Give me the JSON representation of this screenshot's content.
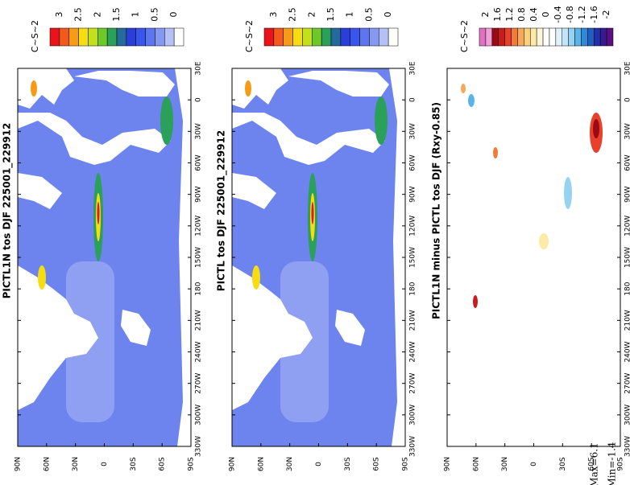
{
  "panels": [
    {
      "title": "PICTL1N tos DJF 225001_229912",
      "colorbar": {
        "unit": "C~S~2",
        "labels": [
          "3",
          "2.5",
          "2",
          "1.5",
          "1",
          "0.5",
          "0"
        ],
        "colors": [
          "#e8141c",
          "#f2591a",
          "#f79a16",
          "#f5dd12",
          "#c4e01a",
          "#6fc82a",
          "#2aa05a",
          "#246a9a",
          "#2c3ed8",
          "#3a55ec",
          "#5d76f0",
          "#8598f2",
          "#b4c0f6",
          "#ffffff"
        ]
      },
      "lat_labels": [
        "90N",
        "60N",
        "30N",
        "0",
        "30S",
        "60S",
        "90S"
      ],
      "lon_labels": [
        "30E",
        "0",
        "30W",
        "60W",
        "90W",
        "120W",
        "150W",
        "180",
        "210W",
        "240W",
        "270W",
        "300W",
        "330W"
      ]
    },
    {
      "title": "PICTL tos DJF 225001_229912",
      "colorbar": {
        "unit": "C~S~2",
        "labels": [
          "3",
          "2.5",
          "2",
          "1.5",
          "1",
          "0.5",
          "0"
        ],
        "colors": [
          "#e8141c",
          "#f2591a",
          "#f79a16",
          "#f5dd12",
          "#c4e01a",
          "#6fc82a",
          "#2aa05a",
          "#246a9a",
          "#2c3ed8",
          "#3a55ec",
          "#5d76f0",
          "#8598f2",
          "#b4c0f6",
          "#ffffff"
        ]
      },
      "lat_labels": [
        "90N",
        "60N",
        "30N",
        "0",
        "30S",
        "60S",
        "90S"
      ],
      "lon_labels": [
        "30E",
        "0",
        "30W",
        "60W",
        "90W",
        "120W",
        "150W",
        "180",
        "210W",
        "240W",
        "270W",
        "300W",
        "330W"
      ]
    },
    {
      "title": "PICTL1N minus PICTL tos DJF (Rxy-0.85)",
      "colorbar": {
        "unit": "C~S~2",
        "labels": [
          "2",
          "1.6",
          "1.2",
          "0.8",
          "0.4",
          "0",
          "-0.4",
          "-0.8",
          "-1.2",
          "-1.6",
          "-2"
        ],
        "colors": [
          "#e070c0",
          "#f0a0d8",
          "#9a0a14",
          "#c81c1c",
          "#e8402a",
          "#f27a3a",
          "#f8a85a",
          "#fbd07a",
          "#fdeaa8",
          "#fff6d8",
          "#ffffff",
          "#ffffff",
          "#e2f2fc",
          "#c2e6f8",
          "#96d2f2",
          "#5ab4ea",
          "#2e8ad8",
          "#1e5ec0",
          "#2030a8",
          "#3a1a90",
          "#5a1080"
        ]
      },
      "lat_labels": [
        "90N",
        "60N",
        "30N",
        "0",
        "30S",
        "60S",
        "90S"
      ],
      "lon_labels": [
        "30E",
        "0",
        "30W",
        "60W",
        "90W",
        "120W",
        "150W",
        "180",
        "210W",
        "240W",
        "270W",
        "300W",
        "330W"
      ]
    }
  ],
  "stats": {
    "max": "Max=6.1",
    "min": "Min=-1.4"
  }
}
